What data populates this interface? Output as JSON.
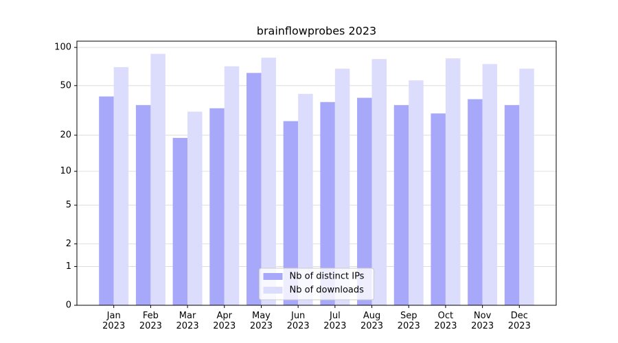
{
  "chart_data": {
    "type": "bar",
    "title": "brainflowprobes 2023",
    "categories": [
      "Jan\n2023",
      "Feb\n2023",
      "Mar\n2023",
      "Apr\n2023",
      "May\n2023",
      "Jun\n2023",
      "Jul\n2023",
      "Aug\n2023",
      "Sep\n2023",
      "Oct\n2023",
      "Nov\n2023",
      "Dec\n2023"
    ],
    "series": [
      {
        "name": "Nb of distinct IPs",
        "color": "#a8a8fb",
        "values": [
          41,
          35,
          19,
          33,
          63,
          26,
          37,
          40,
          35,
          30,
          39,
          35
        ]
      },
      {
        "name": "Nb of downloads",
        "color": "#dcdcfd",
        "values": [
          70,
          89,
          31,
          71,
          83,
          43,
          68,
          81,
          55,
          82,
          74,
          68
        ]
      }
    ],
    "yscale": "log1p",
    "ylim": [
      0,
      112
    ],
    "yticks": [
      0,
      1,
      2,
      5,
      10,
      20,
      50,
      100
    ],
    "grid": true,
    "legend": "lower center"
  }
}
